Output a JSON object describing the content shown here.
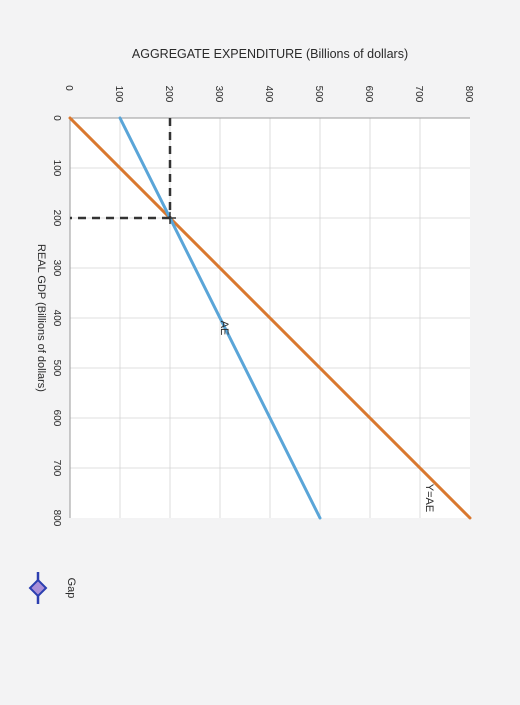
{
  "chart_data": {
    "type": "line",
    "title": "",
    "xlabel": "REAL GDP (Billions of dollars)",
    "ylabel": "AGGREGATE EXPENDITURE (Billions of dollars)",
    "xlim": [
      0,
      800
    ],
    "ylim": [
      0,
      800
    ],
    "x_ticks": [
      "0",
      "100",
      "200",
      "300",
      "400",
      "500",
      "600",
      "700",
      "800"
    ],
    "y_ticks": [
      "0",
      "100",
      "200",
      "300",
      "400",
      "500",
      "600",
      "700",
      "800"
    ],
    "grid": true,
    "series": [
      {
        "name": "Y=AE",
        "color": "#d9782f",
        "x": [
          0,
          800
        ],
        "y": [
          0,
          800
        ]
      },
      {
        "name": "AE",
        "color": "#5aa5d8",
        "x": [
          0,
          800
        ],
        "y": [
          100,
          500
        ]
      }
    ],
    "equilibrium": {
      "x": 200,
      "y": 200
    },
    "legend": {
      "label": "Gap",
      "marker_color": "#2c3fb0",
      "fill_color": "#a98fd8"
    }
  }
}
